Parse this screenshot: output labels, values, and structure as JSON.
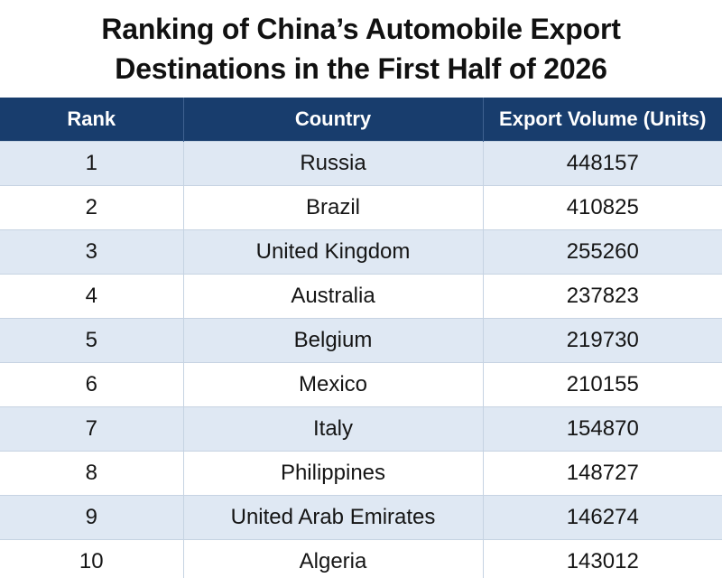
{
  "title_line1": "Ranking of China’s Automobile Export",
  "title_line2": "Destinations in the First Half of 2026",
  "columns": [
    "Rank",
    "Country",
    "Export Volume (Units)"
  ],
  "chart_data": {
    "type": "table",
    "title": "Ranking of China’s Automobile Export Destinations in the First Half of 2026",
    "columns": [
      "Rank",
      "Country",
      "Export Volume (Units)"
    ],
    "rows": [
      [
        "1",
        "Russia",
        "448157"
      ],
      [
        "2",
        "Brazil",
        "410825"
      ],
      [
        "3",
        "United Kingdom",
        "255260"
      ],
      [
        "4",
        "Australia",
        "237823"
      ],
      [
        "5",
        "Belgium",
        "219730"
      ],
      [
        "6",
        "Mexico",
        "210155"
      ],
      [
        "7",
        "Italy",
        "154870"
      ],
      [
        "8",
        "Philippines",
        "148727"
      ],
      [
        "9",
        "United Arab Emirates",
        "146274"
      ],
      [
        "10",
        "Algeria",
        "143012"
      ]
    ]
  }
}
